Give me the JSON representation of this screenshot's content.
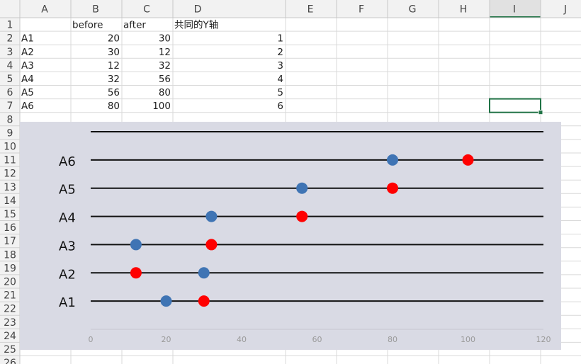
{
  "spreadsheet": {
    "columns": [
      "A",
      "B",
      "C",
      "D",
      "E",
      "F",
      "G",
      "H",
      "I",
      "J"
    ],
    "rows": [
      1,
      2,
      3,
      4,
      5,
      6,
      7,
      8,
      9,
      10,
      11,
      12,
      13,
      14,
      15,
      16,
      17,
      18,
      19,
      20,
      21,
      22,
      23,
      24,
      25,
      26
    ],
    "cells": [
      [
        null,
        "before",
        "after",
        "共同的Y轴"
      ],
      [
        "A1",
        20,
        30,
        1
      ],
      [
        "A2",
        30,
        12,
        2
      ],
      [
        "A3",
        12,
        32,
        3
      ],
      [
        "A4",
        32,
        56,
        4
      ],
      [
        "A5",
        56,
        80,
        5
      ],
      [
        "A6",
        80,
        100,
        6
      ]
    ]
  },
  "chart_data": {
    "type": "scatter",
    "categories": [
      "A1",
      "A2",
      "A3",
      "A4",
      "A5",
      "A6"
    ],
    "y": [
      1,
      2,
      3,
      4,
      5,
      6
    ],
    "series": [
      {
        "color": "#3f74b4",
        "x": [
          20,
          30,
          12,
          32,
          56,
          80
        ]
      },
      {
        "color": "#ff0000",
        "x": [
          30,
          12,
          32,
          56,
          80,
          100
        ]
      }
    ],
    "xlim": [
      0,
      120
    ],
    "xticks": [
      0,
      20,
      40,
      60,
      80,
      100,
      120
    ],
    "ylim": [
      0,
      7
    ],
    "yticks": [
      1,
      2,
      3,
      4,
      5,
      6,
      7
    ],
    "grid": true
  }
}
